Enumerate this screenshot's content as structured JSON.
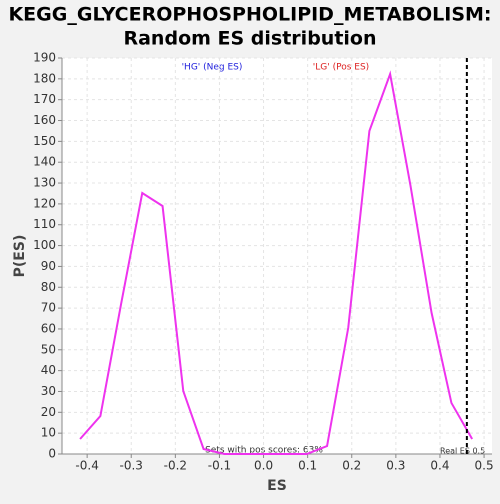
{
  "chart_data": {
    "type": "line",
    "title": "KEGG_GLYCEROPHOSPHOLIPID_METABOLISM:",
    "subtitle": "Random ES distribution",
    "x_label": "ES",
    "y_label": "P(ES)",
    "x": [
      -0.416,
      -0.37,
      -0.323,
      -0.275,
      -0.229,
      -0.182,
      -0.136,
      -0.089,
      -0.042,
      0.005,
      0.052,
      0.098,
      0.144,
      0.192,
      0.24,
      0.287,
      0.333,
      0.381,
      0.426,
      0.473
    ],
    "series": [
      {
        "name": "P(ES)",
        "color": "#ee33ee",
        "values": [
          7.2,
          18.2,
          72,
          125.2,
          119,
          30.2,
          2.4,
          0,
          0,
          0,
          0,
          0,
          3.8,
          60.5,
          155,
          182.3,
          129,
          67.7,
          24.5,
          7.2
        ]
      }
    ],
    "real_es": 0.461,
    "annotations": {
      "neg": "'HG' (Neg ES)",
      "pos": "'LG' (Pos ES)",
      "pos_scores": "Sets with pos scores: 63%",
      "real_es": "Real ES 0.5"
    },
    "xlim": [
      -0.457,
      0.518
    ],
    "ylim": [
      0,
      190
    ],
    "xticks": [
      -0.4,
      -0.3,
      -0.2,
      -0.1,
      {
        "value": 0,
        "label": "0.0"
      },
      0.1,
      0.2,
      0.3,
      0.4,
      0.5
    ],
    "yticks": [
      0,
      10,
      20,
      30,
      40,
      50,
      60,
      70,
      80,
      90,
      100,
      110,
      120,
      130,
      140,
      150,
      160,
      170,
      180,
      190
    ],
    "grid": true
  }
}
